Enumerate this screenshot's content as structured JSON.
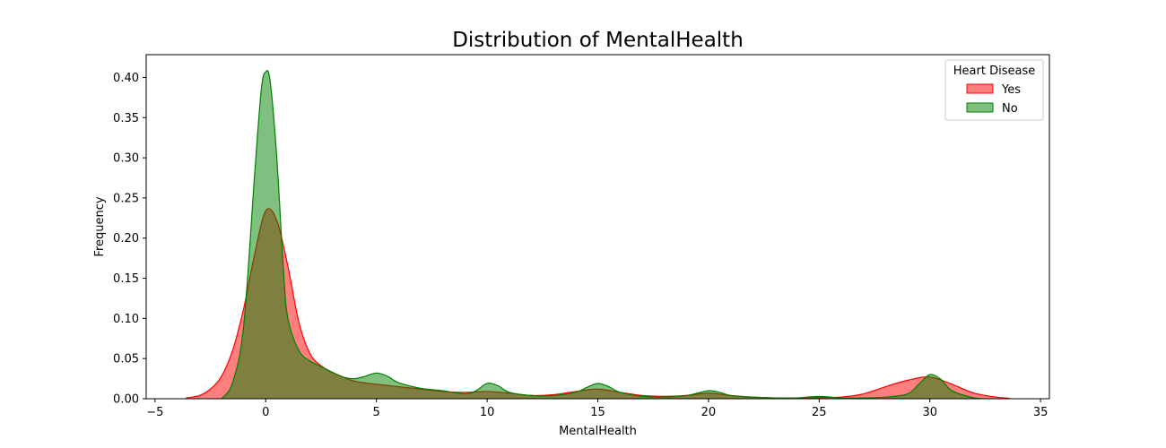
{
  "chart_data": {
    "type": "area",
    "title": "Distribution of MentalHealth",
    "xlabel": "MentalHealth",
    "ylabel": "Frequency",
    "xlim": [
      -5.4,
      35.4
    ],
    "ylim": [
      0,
      0.4284
    ],
    "xticks": [
      -5,
      0,
      5,
      10,
      15,
      20,
      25,
      30,
      35
    ],
    "yticks": [
      0.0,
      0.05,
      0.1,
      0.15,
      0.2,
      0.25,
      0.3,
      0.35,
      0.4
    ],
    "xtick_labels": [
      "−5",
      "0",
      "5",
      "10",
      "15",
      "20",
      "25",
      "30",
      "35"
    ],
    "ytick_labels": [
      "0.00",
      "0.05",
      "0.10",
      "0.15",
      "0.20",
      "0.25",
      "0.30",
      "0.35",
      "0.40"
    ],
    "grid": false,
    "legend": {
      "title": "Heart Disease",
      "position": "top-right"
    },
    "series": [
      {
        "name": "Yes",
        "color": "#ff0000",
        "fill": "#ff0000",
        "fill_opacity": 0.5,
        "x": [
          -3.6,
          -3,
          -2.5,
          -2,
          -1.5,
          -1,
          -0.5,
          0,
          0.5,
          1,
          1.5,
          2,
          2.5,
          3,
          3.5,
          4,
          5,
          6,
          7,
          8,
          9,
          10,
          11,
          12,
          13,
          14,
          15,
          16,
          17,
          18,
          19,
          20,
          21,
          22,
          23,
          24,
          25,
          26,
          27,
          28,
          29,
          30,
          31,
          32,
          33,
          33.6
        ],
        "y": [
          0.001,
          0.004,
          0.012,
          0.028,
          0.06,
          0.112,
          0.18,
          0.234,
          0.222,
          0.165,
          0.095,
          0.056,
          0.041,
          0.033,
          0.027,
          0.022,
          0.018,
          0.015,
          0.012,
          0.009,
          0.008,
          0.009,
          0.007,
          0.004,
          0.005,
          0.009,
          0.012,
          0.008,
          0.004,
          0.003,
          0.004,
          0.007,
          0.004,
          0.002,
          0.001,
          0.001,
          0.0015,
          0.002,
          0.006,
          0.015,
          0.023,
          0.027,
          0.018,
          0.007,
          0.002,
          0.0005
        ]
      },
      {
        "name": "No",
        "color": "#008000",
        "fill": "#008000",
        "fill_opacity": 0.5,
        "x": [
          -2,
          -1.5,
          -1,
          -0.5,
          -0.2,
          0,
          0.2,
          0.5,
          0.8,
          1,
          1.5,
          2,
          2.5,
          3,
          3.5,
          4,
          4.5,
          5,
          5.5,
          6,
          7,
          8,
          9,
          9.5,
          10,
          10.5,
          11,
          12,
          13,
          14,
          14.5,
          15,
          15.5,
          16,
          17,
          18,
          19,
          19.5,
          20,
          20.5,
          21,
          22,
          23,
          24,
          25,
          26,
          27,
          28,
          29,
          29.5,
          30,
          30.5,
          31,
          32,
          32.5
        ],
        "y": [
          0.0,
          0.02,
          0.09,
          0.28,
          0.385,
          0.407,
          0.395,
          0.3,
          0.16,
          0.1,
          0.06,
          0.047,
          0.04,
          0.033,
          0.027,
          0.025,
          0.028,
          0.032,
          0.028,
          0.02,
          0.013,
          0.01,
          0.006,
          0.01,
          0.019,
          0.016,
          0.008,
          0.004,
          0.004,
          0.008,
          0.014,
          0.019,
          0.015,
          0.008,
          0.003,
          0.002,
          0.004,
          0.007,
          0.01,
          0.008,
          0.004,
          0.002,
          0.001,
          0.001,
          0.003,
          0.001,
          0.001,
          0.002,
          0.006,
          0.018,
          0.03,
          0.024,
          0.01,
          0.001,
          0.0
        ]
      }
    ]
  }
}
